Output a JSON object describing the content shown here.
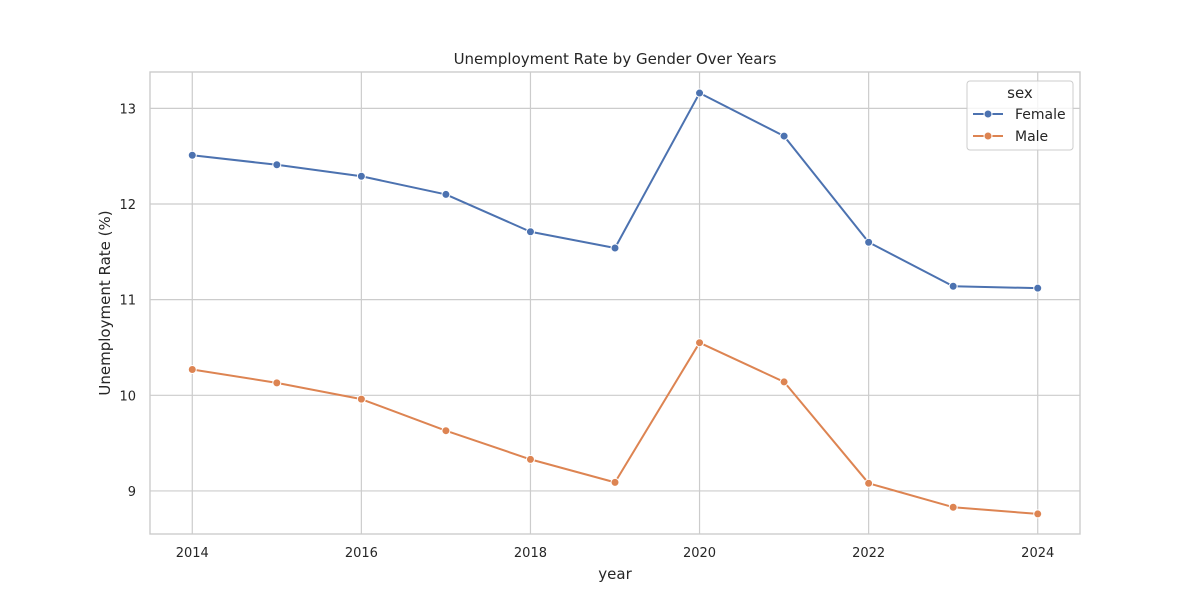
{
  "chart_data": {
    "type": "line",
    "title": "Unemployment Rate by Gender Over Years",
    "xlabel": "year",
    "ylabel": "Unemployment Rate (%)",
    "x": [
      2014,
      2015,
      2016,
      2017,
      2018,
      2019,
      2020,
      2021,
      2022,
      2023,
      2024
    ],
    "xticks": [
      "2014",
      "2016",
      "2018",
      "2020",
      "2022",
      "2024"
    ],
    "yticks": [
      "9",
      "10",
      "11",
      "12",
      "13"
    ],
    "xlim": [
      2013.5,
      2024.5
    ],
    "ylim": [
      8.55,
      13.38
    ],
    "grid": true,
    "legend": {
      "title": "sex",
      "placement": "top-right"
    },
    "series": [
      {
        "name": "Female",
        "color": "#4c72b0",
        "values": [
          12.51,
          12.41,
          12.29,
          12.1,
          11.71,
          11.54,
          13.16,
          12.71,
          11.6,
          11.14,
          11.12
        ]
      },
      {
        "name": "Male",
        "color": "#dd8452",
        "values": [
          10.27,
          10.13,
          9.96,
          9.63,
          9.33,
          9.09,
          10.55,
          10.14,
          9.08,
          8.83,
          8.76
        ]
      }
    ]
  }
}
